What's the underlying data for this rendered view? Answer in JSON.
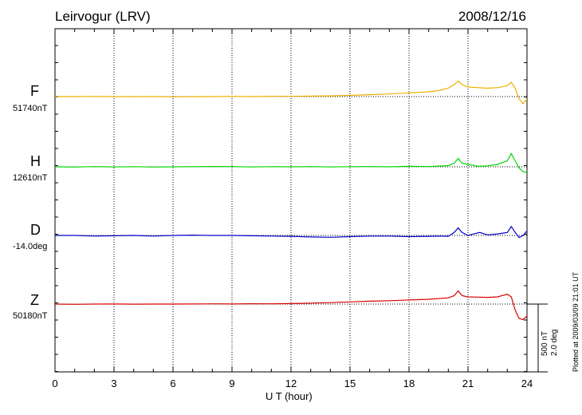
{
  "header": {
    "station": "Leirvogur (LRV)",
    "date": "2008/12/16"
  },
  "scale_bar": {
    "nt_label": "500 nT",
    "deg_label": "2.0 deg"
  },
  "plotted_note": "Plotted at 2009/03/09 21:01 UT",
  "colors": {
    "F": "#f0b000",
    "H": "#00d800",
    "D": "#0000cc",
    "Z": "#d80000",
    "frame": "#000000",
    "grid": "#000000"
  },
  "chart_data": {
    "type": "line",
    "title": "Leirvogur (LRV)",
    "xlabel": "U T (hour)",
    "ylabel": "",
    "xlim": [
      0,
      24
    ],
    "xticks": [
      0,
      3,
      6,
      9,
      12,
      15,
      18,
      21,
      24
    ],
    "grid": "dotted vertical every 3 hours, dotted baseline per channel",
    "scale": "500 nT / 2.0 deg per bar",
    "series": [
      {
        "name": "F",
        "baseline_label": "51740nT",
        "unit": "nT",
        "baseline": 51740,
        "x": [
          0,
          1,
          2,
          3,
          4,
          5,
          6,
          7,
          8,
          9,
          10,
          11,
          12,
          13,
          14,
          15,
          16,
          17,
          18,
          19,
          19.5,
          20,
          20.3,
          20.5,
          20.7,
          21,
          21.5,
          22,
          22.5,
          23,
          23.2,
          23.4,
          23.6,
          23.8,
          24
        ],
        "y": [
          51740,
          51740,
          51741,
          51740,
          51739,
          51740,
          51738,
          51739,
          51740,
          51741,
          51740,
          51742,
          51742,
          51744,
          51746,
          51750,
          51756,
          51762,
          51770,
          51780,
          51790,
          51810,
          51840,
          51870,
          51840,
          51820,
          51815,
          51810,
          51815,
          51830,
          51860,
          51810,
          51720,
          51680,
          51720
        ]
      },
      {
        "name": "H",
        "baseline_label": "12610nT",
        "unit": "nT",
        "baseline": 12610,
        "x": [
          0,
          1,
          2,
          3,
          4,
          5,
          6,
          7,
          8,
          9,
          10,
          11,
          12,
          13,
          14,
          15,
          16,
          17,
          18,
          19,
          20,
          20.3,
          20.5,
          20.7,
          21,
          21.5,
          22,
          22.5,
          23,
          23.2,
          23.4,
          23.6,
          23.8,
          24
        ],
        "y": [
          12610,
          12608,
          12612,
          12609,
          12611,
          12608,
          12610,
          12611,
          12613,
          12612,
          12609,
          12611,
          12610,
          12612,
          12609,
          12611,
          12612,
          12610,
          12614,
          12612,
          12620,
          12640,
          12680,
          12640,
          12630,
          12615,
          12618,
          12630,
          12660,
          12720,
          12660,
          12600,
          12570,
          12560
        ]
      },
      {
        "name": "D",
        "baseline_label": "-14.0deg",
        "unit": "deg",
        "baseline": -14.0,
        "x": [
          0,
          1,
          2,
          3,
          4,
          5,
          6,
          7,
          8,
          9,
          10,
          11,
          12,
          13,
          14,
          15,
          16,
          17,
          18,
          19,
          19.5,
          20,
          20.3,
          20.5,
          20.7,
          21,
          21.3,
          21.6,
          22,
          22.5,
          23,
          23.2,
          23.4,
          23.6,
          23.8,
          24
        ],
        "y": [
          -14.0,
          -14.0,
          -14.02,
          -14.01,
          -14.0,
          -14.02,
          -14.0,
          -13.99,
          -14.0,
          -14.0,
          -14.01,
          -14.02,
          -14.03,
          -14.05,
          -14.06,
          -14.04,
          -14.02,
          -14.02,
          -14.04,
          -14.03,
          -14.02,
          -14.03,
          -13.9,
          -13.75,
          -13.9,
          -14.0,
          -13.95,
          -13.9,
          -13.98,
          -13.95,
          -13.9,
          -13.7,
          -13.9,
          -14.07,
          -14.0,
          -13.85
        ]
      },
      {
        "name": "Z",
        "baseline_label": "50180nT",
        "unit": "nT",
        "baseline": 50180,
        "x": [
          0,
          1,
          2,
          3,
          4,
          5,
          6,
          7,
          8,
          9,
          10,
          11,
          12,
          13,
          14,
          15,
          16,
          17,
          18,
          19,
          20,
          20.3,
          20.5,
          20.7,
          21,
          21.5,
          22,
          22.5,
          23,
          23.2,
          23.4,
          23.6,
          23.8,
          24
        ],
        "y": [
          50180,
          50178,
          50180,
          50181,
          50179,
          50180,
          50180,
          50181,
          50182,
          50181,
          50183,
          50182,
          50184,
          50188,
          50192,
          50198,
          50204,
          50208,
          50214,
          50220,
          50232,
          50250,
          50290,
          50250,
          50240,
          50238,
          50236,
          50240,
          50262,
          50240,
          50130,
          50060,
          50050,
          50080
        ]
      }
    ]
  }
}
